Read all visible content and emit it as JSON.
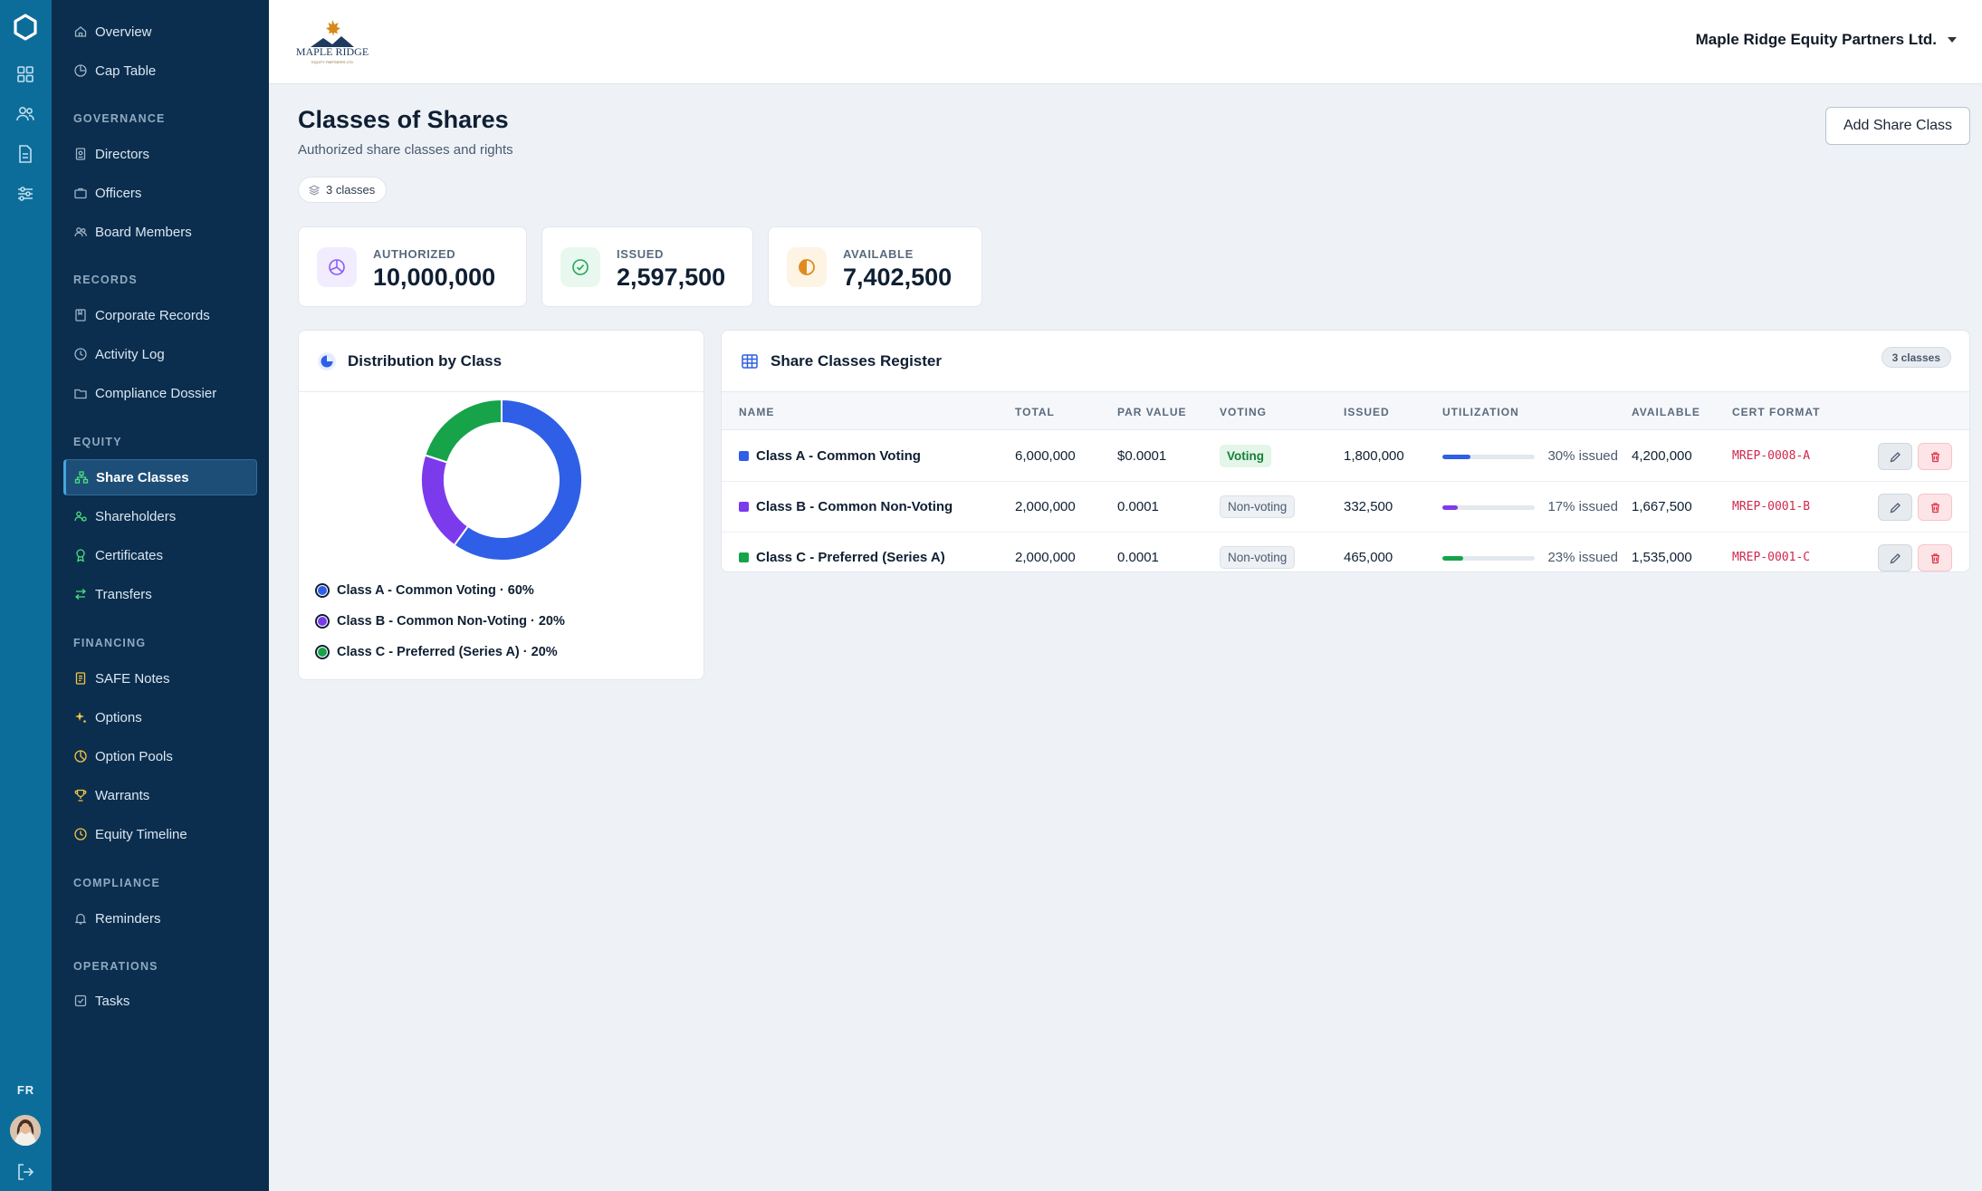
{
  "company": {
    "name": "Maple Ridge Equity Partners Ltd."
  },
  "brand": {
    "logo_text": "MAPLE RIDGE",
    "logo_subtext": "EQUITY PARTNERS LTD"
  },
  "rail": {
    "lang": "FR"
  },
  "sidebar": {
    "top": [
      {
        "label": "Overview",
        "icon": "home-icon"
      },
      {
        "label": "Cap Table",
        "icon": "pie-chart-icon"
      }
    ],
    "sections": [
      {
        "label": "GOVERNANCE",
        "items": [
          {
            "label": "Directors",
            "icon": "badge-icon"
          },
          {
            "label": "Officers",
            "icon": "briefcase-icon"
          },
          {
            "label": "Board Members",
            "icon": "users-icon"
          }
        ]
      },
      {
        "label": "RECORDS",
        "items": [
          {
            "label": "Corporate Records",
            "icon": "book-icon"
          },
          {
            "label": "Activity Log",
            "icon": "clock-icon"
          },
          {
            "label": "Compliance Dossier",
            "icon": "folder-icon"
          }
        ]
      },
      {
        "label": "EQUITY",
        "items": [
          {
            "label": "Share Classes",
            "icon": "hierarchy-icon",
            "active": true
          },
          {
            "label": "Shareholders",
            "icon": "user-group-icon"
          },
          {
            "label": "Certificates",
            "icon": "award-icon"
          },
          {
            "label": "Transfers",
            "icon": "swap-icon"
          }
        ]
      },
      {
        "label": "FINANCING",
        "items": [
          {
            "label": "SAFE Notes",
            "icon": "note-icon"
          },
          {
            "label": "Options",
            "icon": "sparkle-icon"
          },
          {
            "label": "Option Pools",
            "icon": "pie-chart-icon"
          },
          {
            "label": "Warrants",
            "icon": "trophy-icon"
          },
          {
            "label": "Equity Timeline",
            "icon": "clock-icon"
          }
        ]
      },
      {
        "label": "COMPLIANCE",
        "items": [
          {
            "label": "Reminders",
            "icon": "bell-icon"
          }
        ]
      },
      {
        "label": "OPERATIONS",
        "items": [
          {
            "label": "Tasks",
            "icon": "checkbox-icon"
          }
        ]
      }
    ]
  },
  "page": {
    "title": "Classes of Shares",
    "subtitle": "Authorized share classes and rights",
    "count_label": "3 classes",
    "add_button": "Add Share Class"
  },
  "stats": [
    {
      "label": "AUTHORIZED",
      "value": "10,000,000",
      "icon": "pie-chart-icon",
      "color": "#8b5cf6"
    },
    {
      "label": "ISSUED",
      "value": "2,597,500",
      "icon": "check-circle-icon",
      "color": "#22a55a"
    },
    {
      "label": "AVAILABLE",
      "value": "7,402,500",
      "icon": "half-circle-icon",
      "color": "#e08a1e"
    }
  ],
  "distribution": {
    "title": "Distribution by Class",
    "legend": [
      {
        "label": "Class A - Common Voting · 60%",
        "color": "#2e5fe6"
      },
      {
        "label": "Class B - Common Non-Voting · 20%",
        "color": "#7c3aed"
      },
      {
        "label": "Class C - Preferred (Series A) · 20%",
        "color": "#16a34a"
      }
    ]
  },
  "chart_data": {
    "type": "pie",
    "categories": [
      "Class A - Common Voting",
      "Class B - Common Non-Voting",
      "Class C - Preferred (Series A)"
    ],
    "values": [
      60,
      20,
      20
    ],
    "colors": [
      "#2e5fe6",
      "#7c3aed",
      "#16a34a"
    ],
    "donut": true
  },
  "register": {
    "title": "Share Classes Register",
    "badge": "3 classes",
    "columns": [
      "NAME",
      "TOTAL",
      "PAR VALUE",
      "VOTING",
      "ISSUED",
      "UTILIZATION",
      "AVAILABLE",
      "CERT FORMAT"
    ],
    "rows": [
      {
        "name": "Class A - Common Voting",
        "color": "#2e5fe6",
        "total": "6,000,000",
        "par": "$0.0001",
        "voting": "Voting",
        "voting_on": true,
        "issued": "1,800,000",
        "util_pct": 30,
        "util_text": "30% issued",
        "available": "4,200,000",
        "cert": "MREP-0008-A"
      },
      {
        "name": "Class B - Common Non-Voting",
        "color": "#7c3aed",
        "total": "2,000,000",
        "par": "0.0001",
        "voting": "Non-voting",
        "voting_on": false,
        "issued": "332,500",
        "util_pct": 17,
        "util_text": "17% issued",
        "available": "1,667,500",
        "cert": "MREP-0001-B"
      },
      {
        "name": "Class C - Preferred (Series A)",
        "color": "#16a34a",
        "total": "2,000,000",
        "par": "0.0001",
        "voting": "Non-voting",
        "voting_on": false,
        "issued": "465,000",
        "util_pct": 23,
        "util_text": "23% issued",
        "available": "1,535,000",
        "cert": "MREP-0001-C"
      }
    ]
  }
}
